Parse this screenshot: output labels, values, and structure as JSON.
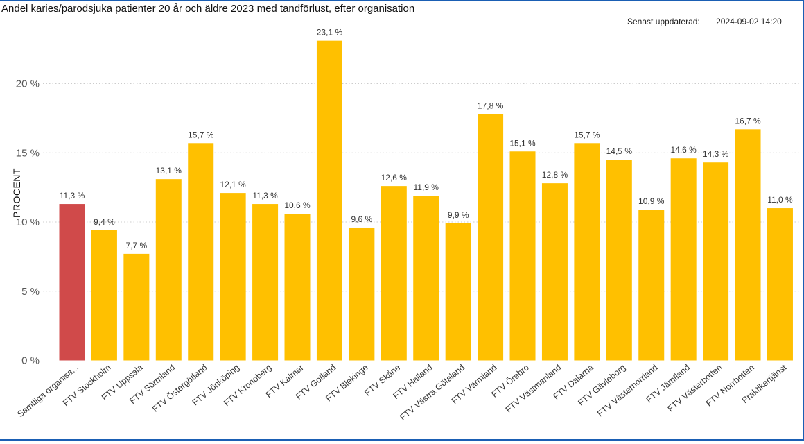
{
  "page": {
    "title": "Andel karies/parodsjuka patienter 20 år och äldre 2023 med tandförlust, efter organisation",
    "updated_label": "Senast uppdaterad:",
    "updated_value": "2024-09-02 14:20"
  },
  "colors": {
    "highlight": "#d04a4a",
    "bar": "#ffc000",
    "grid": "#cccccc"
  },
  "chart_data": {
    "type": "bar",
    "title": "Andel karies/parodsjuka patienter 20 år och äldre 2023 med tandförlust, efter organisation",
    "xlabel": "",
    "ylabel": "PROCENT",
    "ylim": [
      0,
      24
    ],
    "yticks": [
      0,
      5,
      10,
      15,
      20
    ],
    "ytick_labels": [
      "0 %",
      "5 %",
      "10 %",
      "15 %",
      "20 %"
    ],
    "grid": true,
    "categories": [
      "Samtliga organisa...",
      "FTV Stockholm",
      "FTV Uppsala",
      "FTV Sörmland",
      "FTV Östergötland",
      "FTV Jönköping",
      "FTV Kronoberg",
      "FTV Kalmar",
      "FTV Gotland",
      "FTV Blekinge",
      "FTV Skåne",
      "FTV Halland",
      "FTV Västra Götaland",
      "FTV Värmland",
      "FTV Örebro",
      "FTV Västmanland",
      "FTV Dalarna",
      "FTV Gävleborg",
      "FTV Västernorrland",
      "FTV Jämtland",
      "FTV Västerbotten",
      "FTV Norrbotten",
      "Praktikertjänst"
    ],
    "values": [
      11.3,
      9.4,
      7.7,
      13.1,
      15.7,
      12.1,
      11.3,
      10.6,
      23.1,
      9.6,
      12.6,
      11.9,
      9.9,
      17.8,
      15.1,
      12.8,
      15.7,
      14.5,
      10.9,
      14.6,
      14.3,
      16.7,
      11.0
    ],
    "value_labels": [
      "11,3 %",
      "9,4 %",
      "7,7 %",
      "13,1 %",
      "15,7 %",
      "12,1 %",
      "11,3 %",
      "10,6 %",
      "23,1 %",
      "9,6 %",
      "12,6 %",
      "11,9 %",
      "9,9 %",
      "17,8 %",
      "15,1 %",
      "12,8 %",
      "15,7 %",
      "14,5 %",
      "10,9 %",
      "14,6 %",
      "14,3 %",
      "16,7 %",
      "11,0 %"
    ],
    "highlight_index": 0
  }
}
